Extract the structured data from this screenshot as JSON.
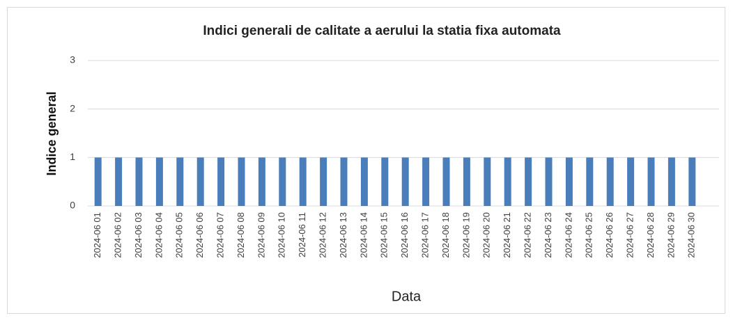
{
  "chart_data": {
    "type": "bar",
    "title": "Indici generali de calitate a aerului la statia fixa automata",
    "xlabel": "Data",
    "ylabel": "Indice general",
    "categories": [
      "2024-06 01",
      "2024-06 02",
      "2024-06 03",
      "2024-06 04",
      "2024-06 05",
      "2024-06 06",
      "2024-06 07",
      "2024-06 08",
      "2024-06 09",
      "2024-06 10",
      "2024-06 11",
      "2024-06 12",
      "2024-06 13",
      "2024-06 14",
      "2024-06 15",
      "2024-06 16",
      "2024-06 17",
      "2024-06 18",
      "2024-06 19",
      "2024-06 20",
      "2024-06 21",
      "2024-06 22",
      "2024-06 23",
      "2024-06 24",
      "2024-06 25",
      "2024-06 26",
      "2024-06 27",
      "2024-06 28",
      "2024-06 29",
      "2024-06 30"
    ],
    "values": [
      1,
      1,
      1,
      1,
      1,
      1,
      1,
      1,
      1,
      1,
      1,
      1,
      1,
      1,
      1,
      1,
      1,
      1,
      1,
      1,
      1,
      1,
      1,
      1,
      1,
      1,
      1,
      1,
      1,
      1
    ],
    "color": "#4a7ebb",
    "ylim": [
      0,
      3
    ],
    "yticks": [
      0,
      1,
      2,
      3
    ],
    "grid": true
  }
}
